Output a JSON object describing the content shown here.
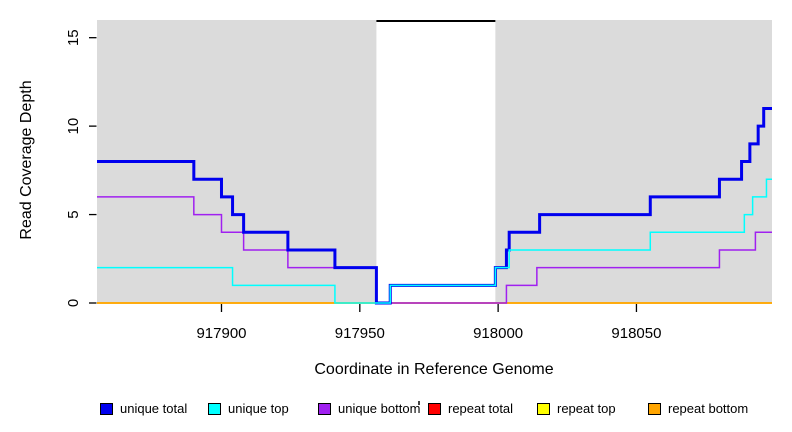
{
  "chart_data": {
    "type": "line",
    "subtype": "step",
    "title": "",
    "xlabel": "Coordinate in Reference Genome",
    "ylabel": "Read Coverage Depth",
    "x_range": [
      917855,
      918099
    ],
    "y_range": [
      0,
      16
    ],
    "x_ticks": [
      "917900",
      "917950",
      "918000",
      "918050"
    ],
    "y_ticks": [
      "0",
      "5",
      "10",
      "15"
    ],
    "grid": "off",
    "panel_bg": "#DBDBDB",
    "axis_color": "#000000",
    "highlight_band": {
      "x_start": 917956,
      "x_end": 917999,
      "fill": "#FFFFFF",
      "top_border_color": "#000000"
    },
    "series": [
      {
        "name": "repeat total",
        "color": "#FF0000",
        "lw": 1.5,
        "steps": [
          [
            917855,
            0
          ]
        ]
      },
      {
        "name": "repeat top",
        "color": "#FFFF00",
        "lw": 1.5,
        "steps": [
          [
            917855,
            0
          ]
        ]
      },
      {
        "name": "repeat bottom",
        "color": "#FFA500",
        "lw": 1.5,
        "steps": [
          [
            917855,
            0
          ]
        ]
      },
      {
        "name": "unique bottom",
        "color": "#A020F0",
        "lw": 1.5,
        "steps": [
          [
            917855,
            6
          ],
          [
            917890,
            5
          ],
          [
            917900,
            4
          ],
          [
            917908,
            3
          ],
          [
            917924,
            2
          ],
          [
            917956,
            0
          ],
          [
            918003,
            1
          ],
          [
            918014,
            2
          ],
          [
            918080,
            3
          ],
          [
            918093,
            4
          ]
        ]
      },
      {
        "name": "unique total",
        "color": "#0000EE",
        "lw": 3,
        "steps": [
          [
            917855,
            8
          ],
          [
            917890,
            7
          ],
          [
            917900,
            6
          ],
          [
            917904,
            5
          ],
          [
            917908,
            4
          ],
          [
            917924,
            3
          ],
          [
            917941,
            2
          ],
          [
            917956,
            0
          ],
          [
            917961,
            1
          ],
          [
            917999,
            2
          ],
          [
            918003,
            3
          ],
          [
            918004,
            4
          ],
          [
            918015,
            5
          ],
          [
            918055,
            6
          ],
          [
            918080,
            7
          ],
          [
            918088,
            8
          ],
          [
            918091,
            9
          ],
          [
            918094,
            10
          ],
          [
            918096,
            11
          ]
        ]
      },
      {
        "name": "unique top",
        "color": "#00FFFF",
        "lw": 1.5,
        "steps": [
          [
            917855,
            2
          ],
          [
            917904,
            1
          ],
          [
            917941,
            0
          ],
          [
            917961,
            1
          ],
          [
            917999,
            2
          ],
          [
            918004,
            3
          ],
          [
            918055,
            4
          ],
          [
            918089,
            5
          ],
          [
            918092,
            6
          ],
          [
            918097,
            7
          ]
        ]
      }
    ],
    "legend": {
      "position": "bottom",
      "entries": [
        {
          "label": "unique total",
          "color": "#0000EE"
        },
        {
          "label": "unique top",
          "color": "#00FFFF"
        },
        {
          "label": "unique bottom",
          "color": "#A020F0"
        },
        {
          "label": "repeat total",
          "color": "#FF0000"
        },
        {
          "label": "repeat top",
          "color": "#FFFF00"
        },
        {
          "label": "repeat bottom",
          "color": "#FFA500"
        }
      ]
    }
  }
}
